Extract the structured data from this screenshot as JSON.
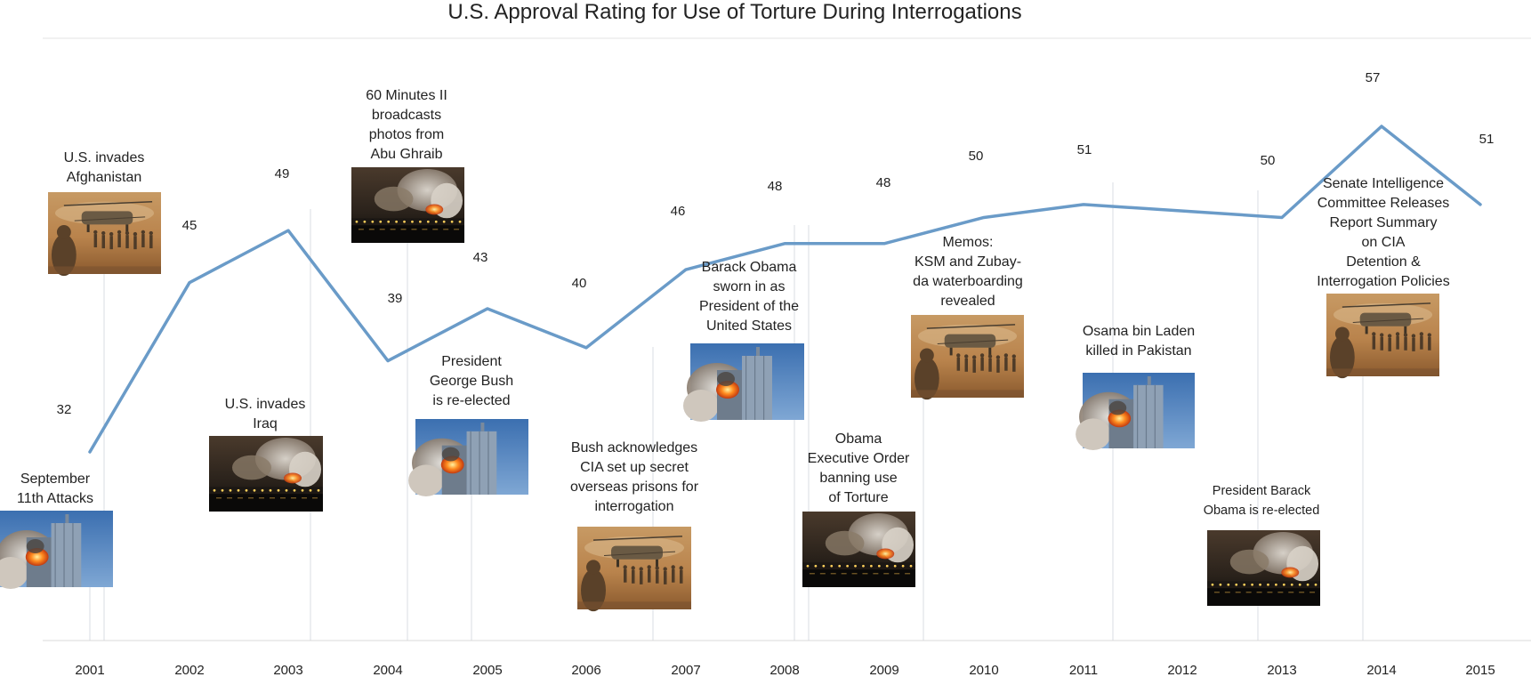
{
  "chart_data": {
    "type": "line",
    "title": "U.S. Approval Rating for Use of Torture During Interrogations",
    "xlabel": "",
    "ylabel": "",
    "x": [
      "2001",
      "2002",
      "2003",
      "2004",
      "2005",
      "2006",
      "2007",
      "2008",
      "2009",
      "2010",
      "2011",
      "2012",
      "2013",
      "2014",
      "2015"
    ],
    "series": [
      {
        "values": [
          32,
          45,
          49,
          39,
          43,
          40,
          46,
          48,
          48,
          50,
          51,
          null,
          50,
          57,
          51
        ],
        "data_labels": [
          "32",
          "45",
          "49",
          "39",
          "43",
          "40",
          "46",
          "48",
          "48",
          "50",
          "51",
          "",
          "50",
          "57",
          "51"
        ]
      }
    ],
    "line_color": "#6a9bc8",
    "grid": false,
    "annotations": [
      {
        "id": "sept11",
        "at": "2001",
        "lines": [
          "September",
          "11th Attacks"
        ],
        "image": "twin-towers-photo"
      },
      {
        "id": "afghanistan",
        "at": "2001",
        "lines": [
          "U.S. invades",
          "Afghanistan"
        ],
        "image": "soldiers-helicopter-photo"
      },
      {
        "id": "iraq",
        "at": "2003",
        "lines": [
          "U.S. invades",
          "Iraq"
        ],
        "image": "city-explosion-photo"
      },
      {
        "id": "abughraib",
        "at": "2004",
        "lines": [
          "60 Minutes II",
          "broadcasts",
          "photos from",
          "Abu Ghraib"
        ],
        "image": "city-explosion-photo"
      },
      {
        "id": "bush",
        "at": "2005",
        "lines": [
          "President",
          "George Bush",
          "is re-elected"
        ],
        "image": "twin-towers-photo"
      },
      {
        "id": "prisons",
        "at": "2006",
        "lines": [
          "Bush acknowledges",
          "CIA set up secret",
          "overseas prisons for",
          "interrogation"
        ],
        "image": "soldiers-helicopter-photo"
      },
      {
        "id": "obama-sworn",
        "at": "2008",
        "lines": [
          "Barack Obama",
          "sworn in as",
          "President of the",
          "United States"
        ],
        "image": "twin-towers-photo"
      },
      {
        "id": "exec-order",
        "at": "2008",
        "lines": [
          "Obama",
          "Executive Order",
          "banning use",
          "of Torture"
        ],
        "image": "city-explosion-photo"
      },
      {
        "id": "memos",
        "at": "2009",
        "lines": [
          "Memos:",
          "KSM and Zubay-",
          "da waterboarding",
          "revealed"
        ],
        "image": "soldiers-helicopter-photo"
      },
      {
        "id": "binladen",
        "at": "2011",
        "lines": [
          "Osama bin Laden",
          "killed in Pakistan"
        ],
        "image": "twin-towers-photo"
      },
      {
        "id": "obama-reelected",
        "at": "2012",
        "lines": [
          "President Barack",
          "Obama is re-elected"
        ],
        "image": "city-explosion-photo"
      },
      {
        "id": "senate",
        "at": "2014",
        "lines": [
          "Senate Intelligence",
          "Committee Releases",
          "Report Summary",
          "on CIA",
          "Detention &",
          "Interrogation Policies"
        ],
        "image": "soldiers-helicopter-photo"
      }
    ]
  }
}
